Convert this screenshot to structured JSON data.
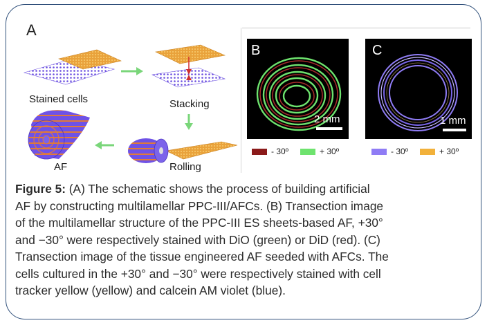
{
  "figure": {
    "panel_a": {
      "label": "A",
      "step_labels": {
        "stained_cells": "Stained cells",
        "stacking": "Stacking",
        "af": "AF",
        "rolling": "Rolling"
      }
    },
    "panel_b": {
      "label": "B",
      "scale_bar": "2 mm",
      "legend": [
        {
          "text": "- 30º",
          "color": "#8b1a1a"
        },
        {
          "text": "+ 30º",
          "color": "#6ee36e"
        }
      ]
    },
    "panel_c": {
      "label": "C",
      "scale_bar": "1 mm",
      "legend": [
        {
          "text": "- 30º",
          "color": "#8f7cf5"
        },
        {
          "text": "+ 30º",
          "color": "#f2b13b"
        }
      ]
    }
  },
  "caption": {
    "title": "Figure 5:",
    "lines": [
      " (A) The schematic shows the process of building artificial",
      "AF by constructing multilamellar PPC-III/AFCs. (B) Transection image",
      "of the multilamellar structure of the PPC-III ES sheets-based AF, +30°",
      "and −30° were respectively stained with DiO (green) or DiD (red). (C)",
      "Transection image of the tissue engineered AF seeded with AFCs. The",
      "cells cultured in the +30° and −30° were respectively stained with cell",
      " tracker yellow (yellow) and calcein AM violet (blue)."
    ]
  }
}
